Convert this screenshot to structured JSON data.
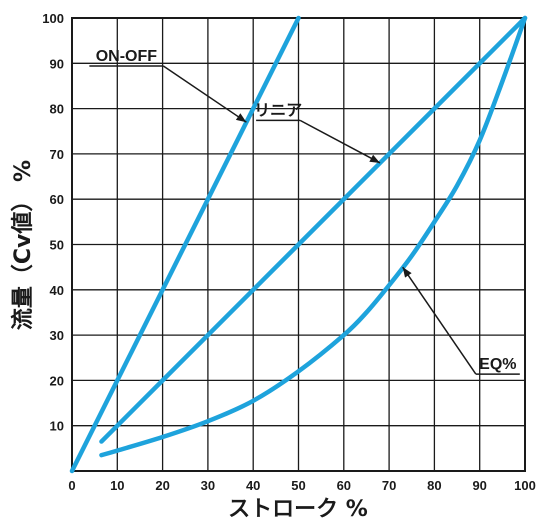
{
  "chart_data": {
    "type": "line",
    "xlabel": "ストローク  %",
    "ylabel": "流量（Cv値） %",
    "xlim": [
      0,
      100
    ],
    "ylim": [
      0,
      100
    ],
    "x_ticks": [
      0,
      10,
      20,
      30,
      40,
      50,
      60,
      70,
      80,
      90,
      100
    ],
    "y_ticks": [
      10,
      20,
      30,
      40,
      50,
      60,
      70,
      80,
      90,
      100
    ],
    "grid": true,
    "line_color": "#1ea3dc",
    "series": [
      {
        "name": "ON-OFF",
        "x": [
          0,
          50
        ],
        "y": [
          0,
          100
        ]
      },
      {
        "name": "リニア",
        "x": [
          6.5,
          100
        ],
        "y": [
          6.5,
          100
        ]
      },
      {
        "name": "EQ%",
        "x": [
          6.5,
          10,
          20,
          30,
          40,
          50,
          60,
          65,
          70,
          75,
          80,
          85,
          90,
          95,
          100
        ],
        "y": [
          3.5,
          4.5,
          7.5,
          11,
          15.5,
          22,
          30,
          35,
          41,
          47.5,
          55,
          63,
          73,
          86,
          100
        ]
      }
    ],
    "annotations": [
      {
        "text": "ON-OFF",
        "series": "ON-OFF",
        "label_x": 12,
        "label_y": 90.5,
        "target_x": 38.5,
        "target_y": 77
      },
      {
        "text": "リニア",
        "series": "リニア",
        "label_x": 45.5,
        "label_y": 78.5,
        "target_x": 68,
        "target_y": 68
      },
      {
        "text": "EQ%",
        "series": "EQ%",
        "label_x": 94,
        "label_y": 22.5,
        "target_x": 73,
        "target_y": 45
      }
    ]
  }
}
